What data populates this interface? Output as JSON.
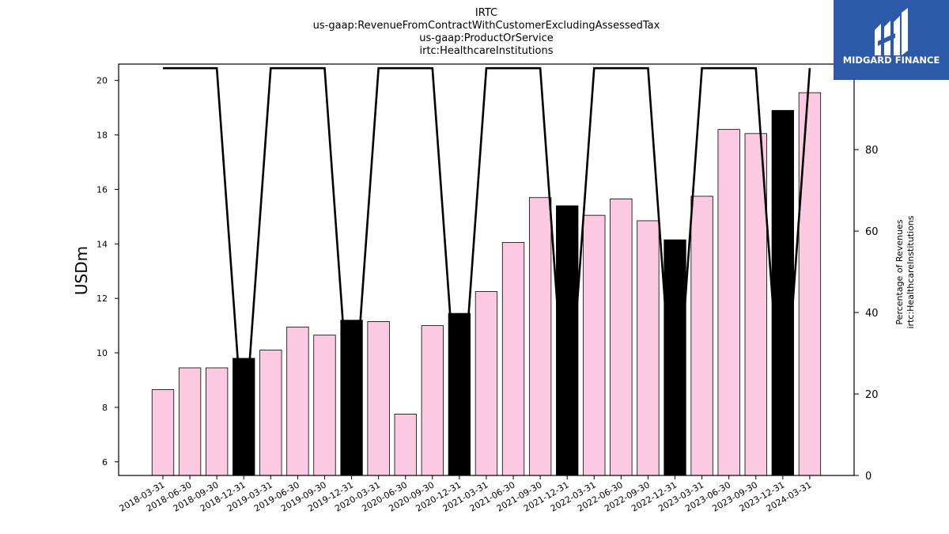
{
  "brand": {
    "name": "MIDGARD FINANCE",
    "bg_color": "#2d5aa8"
  },
  "chart_data": {
    "type": "bar",
    "title_lines": [
      "IRTC",
      "us-gaap:RevenueFromContractWithCustomerExcludingAssessedTax",
      "us-gaap:ProductOrService",
      "irtc:HealthcareInstitutions"
    ],
    "ylabel": "USDm",
    "y2label_lines": [
      "Percentage of Revenues",
      "irtc:HealthcareInstitutions"
    ],
    "ylim": [
      5.5,
      20.6
    ],
    "y_ticks": [
      6,
      8,
      10,
      12,
      14,
      16,
      18,
      20
    ],
    "y2lim": [
      0,
      101
    ],
    "y2_ticks": [
      0,
      20,
      40,
      60,
      80,
      100
    ],
    "grid": false,
    "categories": [
      "2018-03-31",
      "2018-06-30",
      "2018-09-30",
      "2018-12-31",
      "2019-03-31",
      "2019-06-30",
      "2019-09-30",
      "2019-12-31",
      "2020-03-31",
      "2020-06-30",
      "2020-09-30",
      "2020-12-31",
      "2021-03-31",
      "2021-06-30",
      "2021-09-30",
      "2021-12-31",
      "2022-03-31",
      "2022-06-30",
      "2022-09-30",
      "2022-12-31",
      "2023-03-31",
      "2023-06-30",
      "2023-09-30",
      "2023-12-31",
      "2024-03-31"
    ],
    "series": [
      {
        "type": "bar",
        "axis": "left",
        "values": [
          8.65,
          9.45,
          9.45,
          9.8,
          10.1,
          10.95,
          10.65,
          11.2,
          11.15,
          7.75,
          11.0,
          11.45,
          12.25,
          14.05,
          15.7,
          15.4,
          15.05,
          15.65,
          14.85,
          14.15,
          15.75,
          18.2,
          18.05,
          18.9,
          19.55
        ],
        "bar_colors": [
          "#fcc9e2",
          "#fcc9e2",
          "#fcc9e2",
          "#000000",
          "#fcc9e2",
          "#fcc9e2",
          "#fcc9e2",
          "#000000",
          "#fcc9e2",
          "#fcc9e2",
          "#fcc9e2",
          "#000000",
          "#fcc9e2",
          "#fcc9e2",
          "#fcc9e2",
          "#000000",
          "#fcc9e2",
          "#fcc9e2",
          "#fcc9e2",
          "#000000",
          "#fcc9e2",
          "#fcc9e2",
          "#fcc9e2",
          "#000000",
          "#fcc9e2"
        ]
      },
      {
        "type": "line",
        "axis": "right",
        "color": "#000000",
        "values": [
          100,
          100,
          100,
          8,
          100,
          100,
          100,
          8,
          100,
          100,
          100,
          8,
          100,
          100,
          100,
          8,
          100,
          100,
          100,
          8,
          100,
          100,
          100,
          8,
          100
        ]
      }
    ]
  }
}
